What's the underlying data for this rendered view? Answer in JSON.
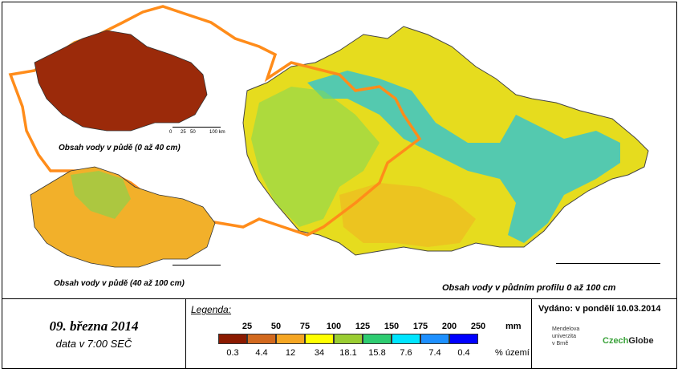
{
  "maps": {
    "small_top_label": "Obsah vody v půdě (0 až 40 cm)",
    "small_bottom_label": "Obsah vody v půdě (40 až 100 cm)",
    "main_label": "Obsah vody v půdním profilu 0 až 100 cm",
    "scale_ticks": [
      "0",
      "25",
      "50",
      "100 km"
    ]
  },
  "date": {
    "main": "09. března 2014",
    "sub": "data v 7:00 SEČ"
  },
  "legend": {
    "title": "Legenda:",
    "unit_mm": "mm",
    "unit_pct": "% území",
    "thresholds": [
      "25",
      "50",
      "75",
      "100",
      "125",
      "150",
      "175",
      "200",
      "250"
    ],
    "colors": [
      "#8b1a00",
      "#d2691e",
      "#f5a623",
      "#ffff00",
      "#9acd32",
      "#2ecc71",
      "#00e5ff",
      "#1e90ff",
      "#0000ff"
    ],
    "percentages": [
      "0.3",
      "4.4",
      "12",
      "34",
      "18.1",
      "15.8",
      "7.6",
      "7.4",
      "0.4"
    ]
  },
  "issued": {
    "text": "Vydáno: v pondělí 10.03.2014",
    "mendel_lines": [
      "Mendelova",
      "univerzita",
      "v Brně"
    ],
    "logo_czech": "Czech",
    "logo_globe": "Globe"
  }
}
